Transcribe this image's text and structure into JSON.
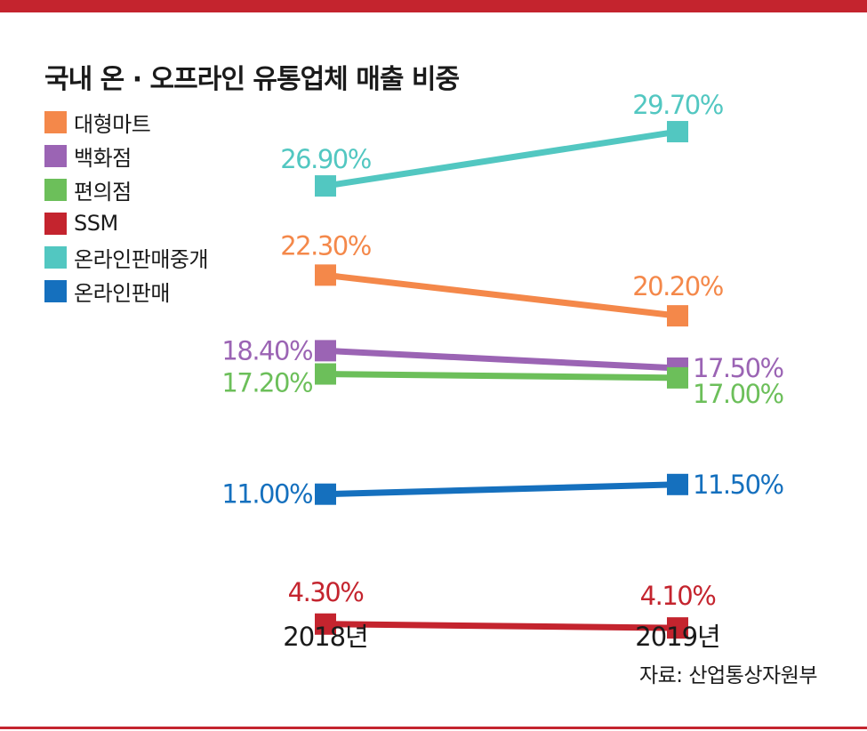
{
  "title": "국내 온 · 오프라인 유통업체 매출 비중",
  "source": "자료: 산업통상자원부",
  "colors": {
    "accent_bar": "#c4242e"
  },
  "legend": [
    {
      "label": "대형마트",
      "color": "#f4884a"
    },
    {
      "label": "백화점",
      "color": "#9b64b4"
    },
    {
      "label": "편의점",
      "color": "#6cbf5a"
    },
    {
      "label": "SSM",
      "color": "#c4242e"
    },
    {
      "label": "온라인판매중개",
      "color": "#52c7c1"
    },
    {
      "label": "온라인판매",
      "color": "#1570be"
    }
  ],
  "chart_data": {
    "type": "line",
    "categories": [
      "2018년",
      "2019년"
    ],
    "series": [
      {
        "name": "대형마트",
        "values": [
          22.3,
          20.2
        ],
        "labels": [
          "22.30%",
          "20.20%"
        ],
        "color": "#f4884a"
      },
      {
        "name": "백화점",
        "values": [
          18.4,
          17.5
        ],
        "labels": [
          "18.40%",
          "17.50%"
        ],
        "color": "#9b64b4"
      },
      {
        "name": "편의점",
        "values": [
          17.2,
          17.0
        ],
        "labels": [
          "17.20%",
          "17.00%"
        ],
        "color": "#6cbf5a"
      },
      {
        "name": "SSM",
        "values": [
          4.3,
          4.1
        ],
        "labels": [
          "4.30%",
          "4.10%"
        ],
        "color": "#c4242e"
      },
      {
        "name": "온라인판매중개",
        "values": [
          26.9,
          29.7
        ],
        "labels": [
          "26.90%",
          "29.70%"
        ],
        "color": "#52c7c1"
      },
      {
        "name": "온라인판매",
        "values": [
          11.0,
          11.5
        ],
        "labels": [
          "11.00%",
          "11.50%"
        ],
        "color": "#1570be"
      }
    ],
    "unit": "%",
    "grid": false,
    "legend_position": "top-left"
  }
}
